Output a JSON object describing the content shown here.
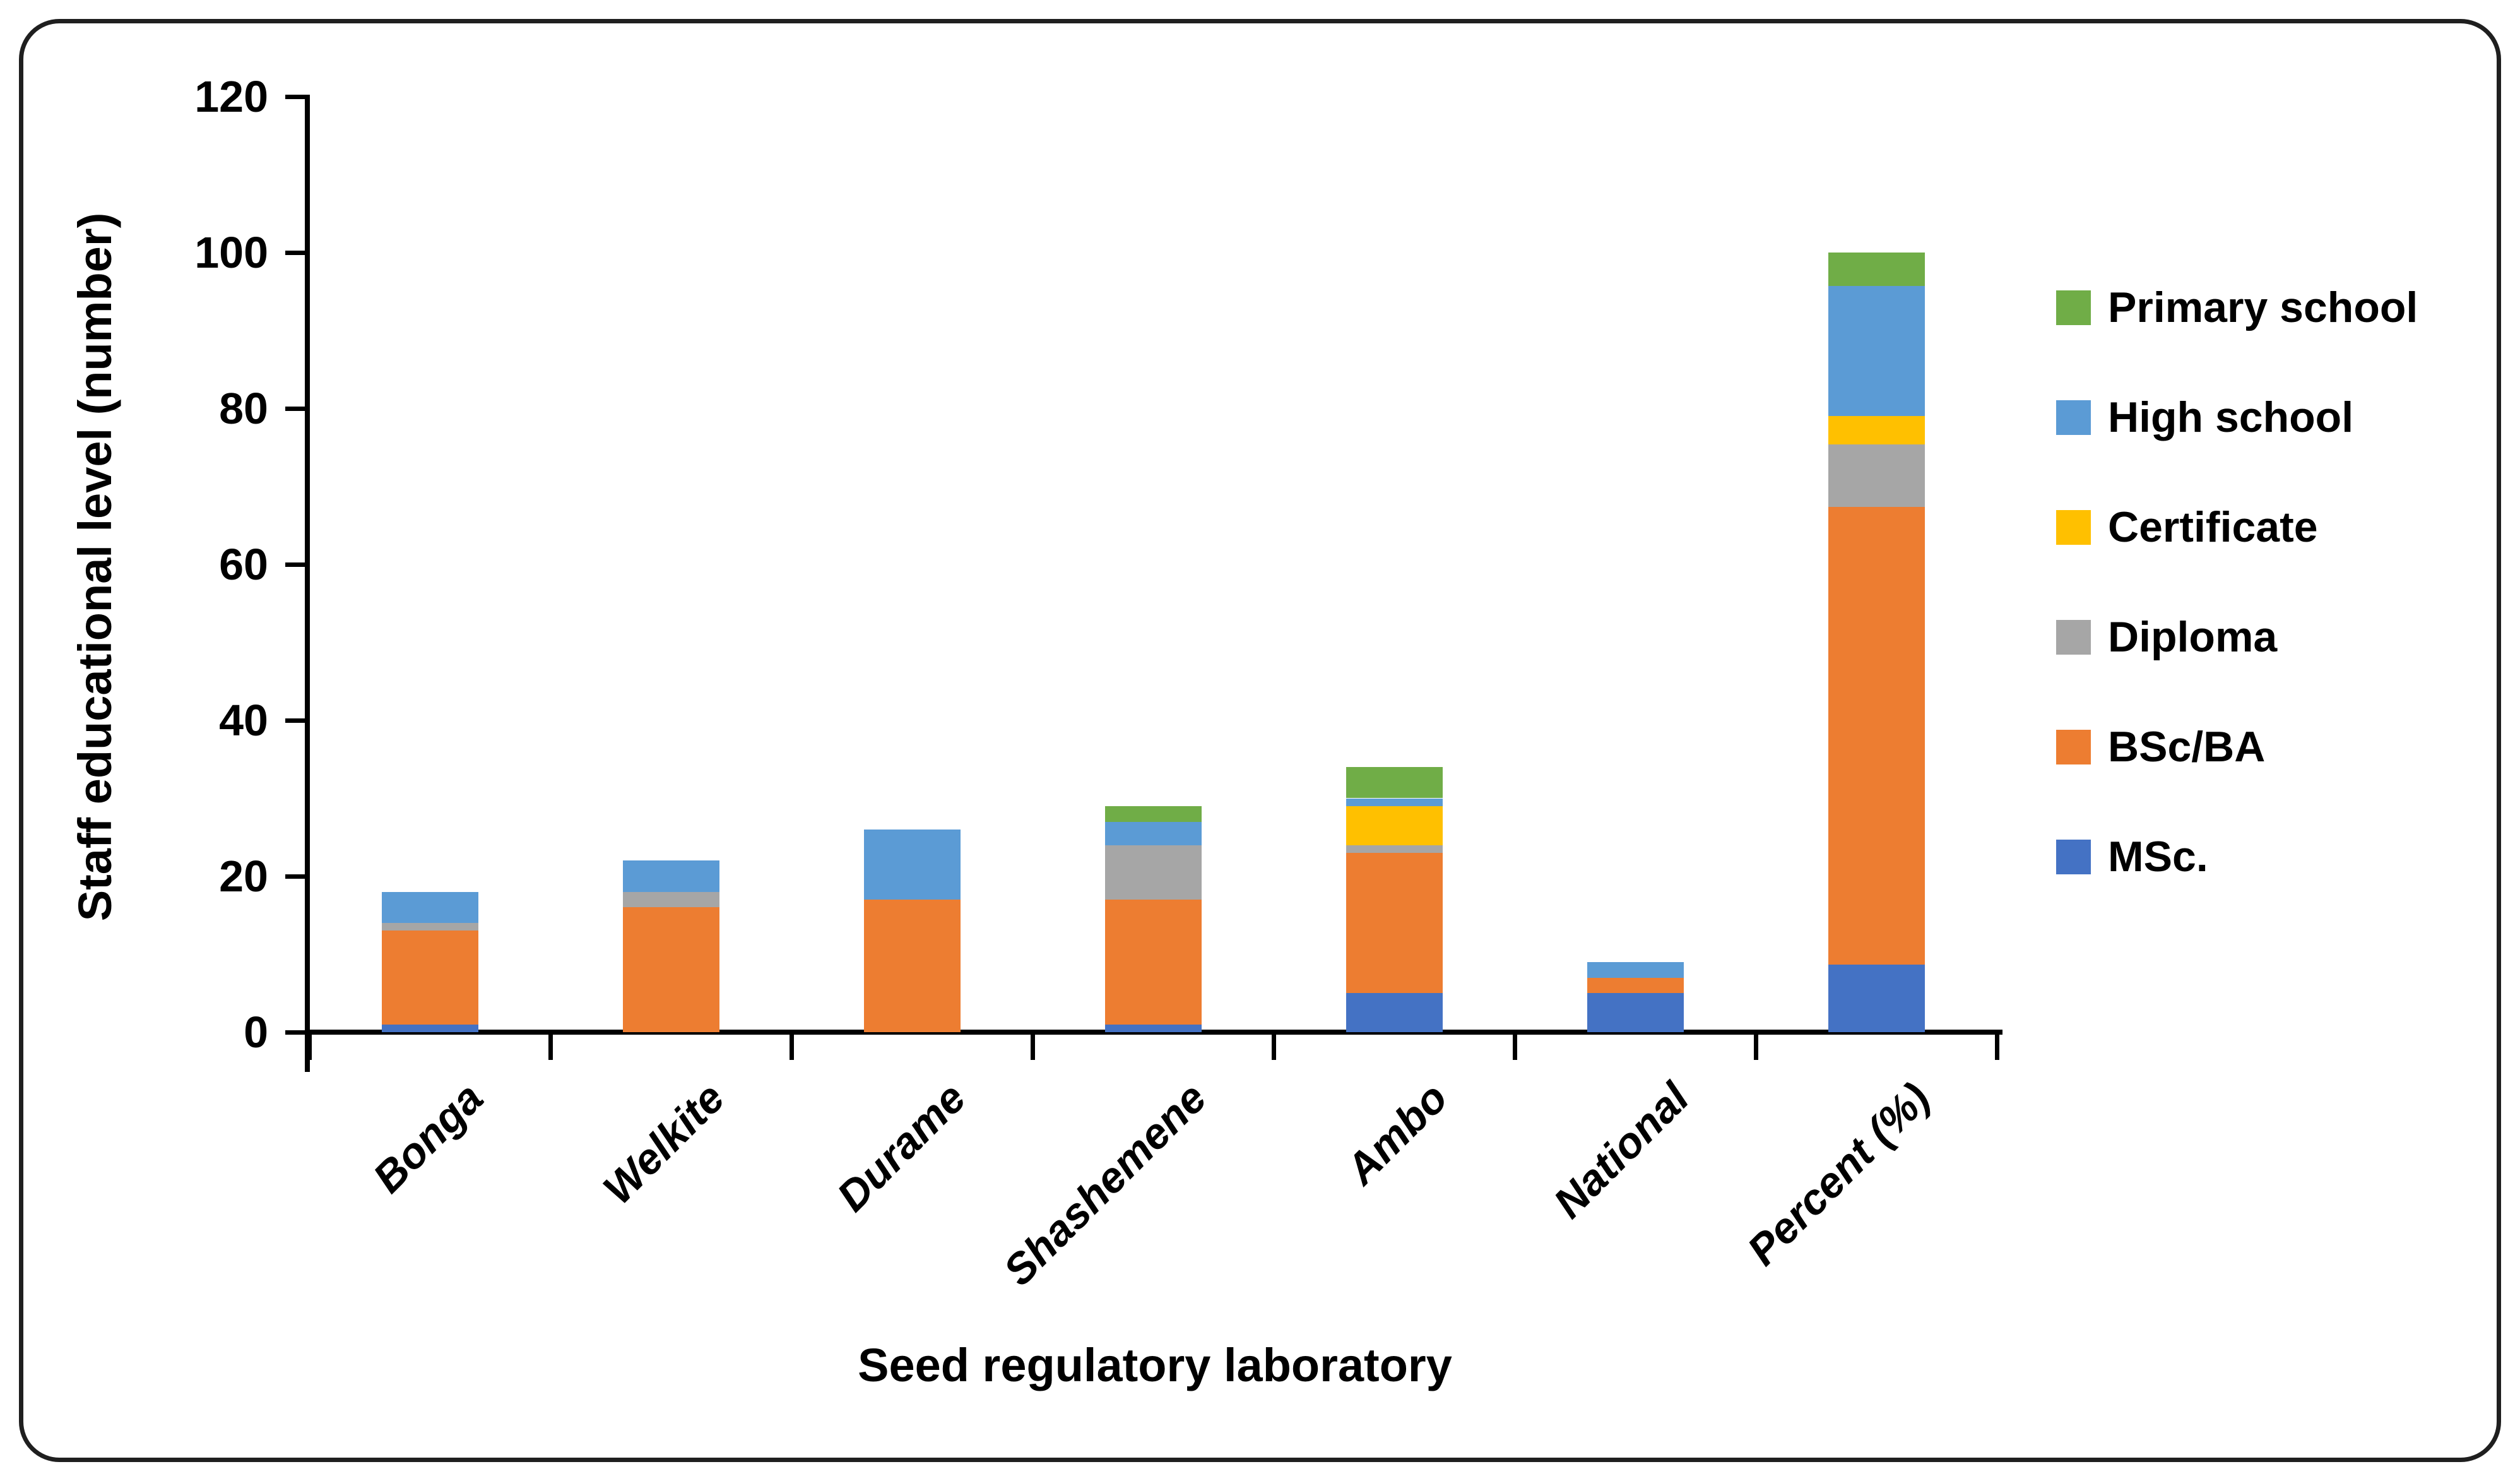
{
  "chart_data": {
    "type": "bar",
    "stacked": true,
    "xlabel": "Seed regulatory laboratory",
    "ylabel": "Staff educational level (number)",
    "ylim": [
      0,
      120
    ],
    "ytick_interval": 20,
    "ytick_labels": [
      "0",
      "20",
      "40",
      "60",
      "80",
      "100",
      "120"
    ],
    "grid": false,
    "legend_position": "right",
    "categories": [
      "Bonga",
      "Welkite",
      "Durame",
      "Shashemene",
      "Ambo",
      "National",
      "Percent (%)"
    ],
    "stack_order_bottom_to_top": [
      "MSc.",
      "BSc/BA",
      "Diploma",
      "Certificate",
      "High school",
      "Primary school"
    ],
    "series": [
      {
        "name": "MSc.",
        "color": "#4472C4",
        "values": [
          1,
          0,
          0,
          1,
          5,
          5,
          8.7
        ]
      },
      {
        "name": "BSc/BA",
        "color": "#ED7D31",
        "values": [
          12,
          16,
          17,
          16,
          18,
          2,
          58.7
        ]
      },
      {
        "name": "Diploma",
        "color": "#A6A6A6",
        "values": [
          1,
          2,
          0,
          7,
          1,
          0,
          8.0
        ]
      },
      {
        "name": "Certificate",
        "color": "#FFC000",
        "values": [
          0,
          0,
          0,
          0,
          5,
          0,
          3.6
        ]
      },
      {
        "name": "High school",
        "color": "#5B9BD5",
        "values": [
          4,
          4,
          9,
          3,
          1,
          2,
          16.7
        ]
      },
      {
        "name": "Primary school",
        "color": "#70AD47",
        "values": [
          0,
          0,
          0,
          2,
          4,
          0,
          4.3
        ]
      }
    ],
    "totals": [
      18,
      22,
      26,
      29,
      34,
      9,
      100
    ],
    "legend_order_top_to_bottom": [
      "Primary school",
      "High school",
      "Certificate",
      "Diploma",
      "BSc/BA",
      "MSc."
    ],
    "axis_color": "#000000",
    "background_color": "#FFFFFF"
  }
}
